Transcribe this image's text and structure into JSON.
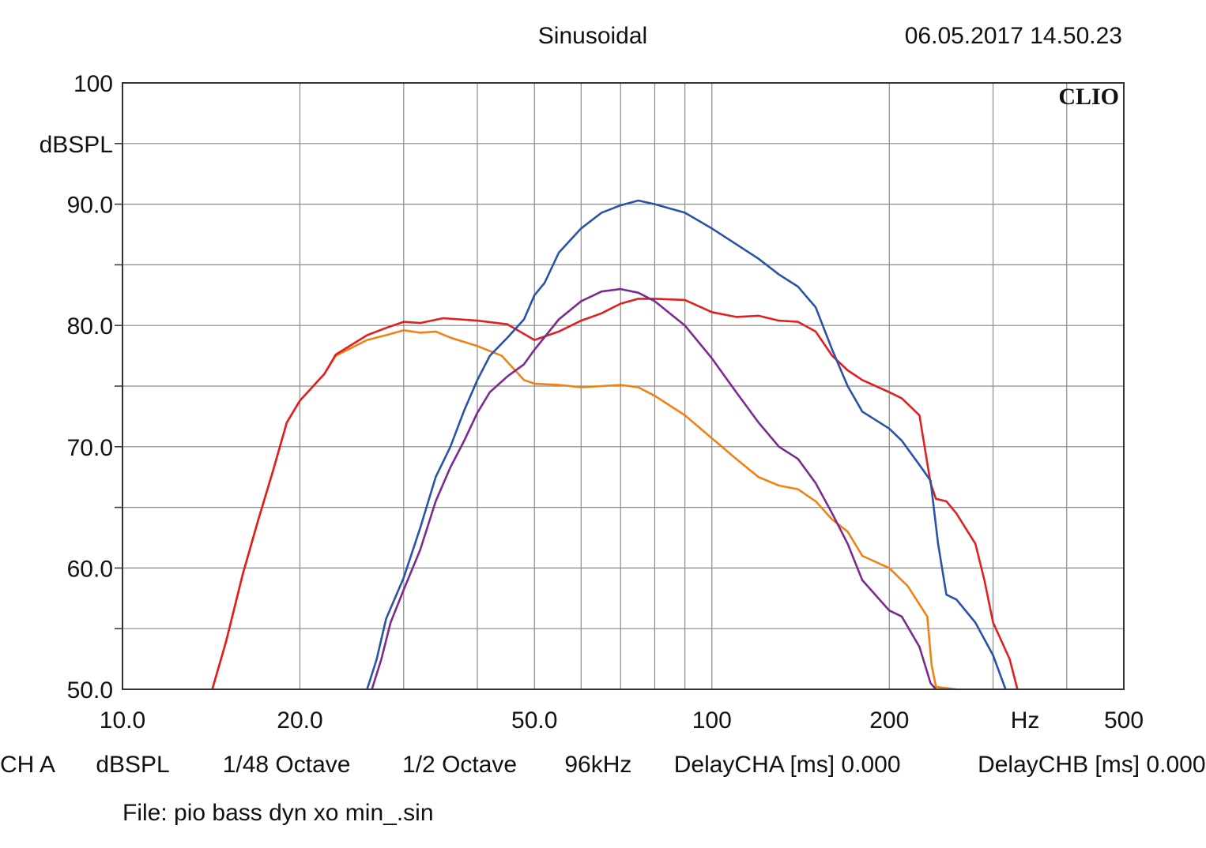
{
  "header": {
    "mode": "Sinusoidal",
    "datetime": "06.05.2017 14.50.23",
    "logo": "CLIO"
  },
  "chart_data": {
    "type": "line",
    "x_scale": "log",
    "xlim": [
      10,
      500
    ],
    "ylim": [
      50,
      100
    ],
    "grid": true,
    "x_ticks": [
      "10.0",
      "20.0",
      "50.0",
      "100",
      "200",
      "Hz",
      "500"
    ],
    "y_ticks": [
      "100",
      "dBSPL",
      "90.0",
      "80.0",
      "70.0",
      "60.0",
      "50.0"
    ],
    "series": [
      {
        "color": "#f08214",
        "points": [
          [
            14.2,
            50
          ],
          [
            15,
            54
          ],
          [
            16,
            59.5
          ],
          [
            17,
            64
          ],
          [
            18,
            68
          ],
          [
            19,
            72
          ],
          [
            20,
            73.8
          ],
          [
            22,
            76
          ],
          [
            23,
            77.5
          ],
          [
            26,
            78.8
          ],
          [
            28,
            79.2
          ],
          [
            30,
            79.6
          ],
          [
            32,
            79.4
          ],
          [
            34,
            79.5
          ],
          [
            36,
            79
          ],
          [
            40,
            78.3
          ],
          [
            44,
            77.5
          ],
          [
            48,
            75.5
          ],
          [
            50,
            75.2
          ],
          [
            55,
            75.1
          ],
          [
            60,
            74.9
          ],
          [
            65,
            75
          ],
          [
            70,
            75.1
          ],
          [
            75,
            74.9
          ],
          [
            80,
            74.2
          ],
          [
            90,
            72.6
          ],
          [
            100,
            70.7
          ],
          [
            110,
            69
          ],
          [
            120,
            67.5
          ],
          [
            130,
            66.8
          ],
          [
            140,
            66.5
          ],
          [
            150,
            65.5
          ],
          [
            160,
            64
          ],
          [
            170,
            63
          ],
          [
            180,
            61
          ],
          [
            200,
            60
          ],
          [
            215,
            58.5
          ],
          [
            232,
            56
          ],
          [
            236,
            52
          ],
          [
            240,
            50.2
          ],
          [
            260,
            50
          ]
        ]
      },
      {
        "color": "#e02020",
        "points": [
          [
            14.2,
            50
          ],
          [
            15,
            54
          ],
          [
            16,
            59.5
          ],
          [
            17,
            64
          ],
          [
            18,
            68
          ],
          [
            19,
            72
          ],
          [
            20,
            73.8
          ],
          [
            22,
            76
          ],
          [
            23,
            77.6
          ],
          [
            26,
            79.2
          ],
          [
            28,
            79.8
          ],
          [
            30,
            80.3
          ],
          [
            32,
            80.2
          ],
          [
            35,
            80.6
          ],
          [
            40,
            80.4
          ],
          [
            45,
            80.1
          ],
          [
            50,
            78.8
          ],
          [
            55,
            79.5
          ],
          [
            60,
            80.4
          ],
          [
            65,
            81
          ],
          [
            70,
            81.8
          ],
          [
            75,
            82.2
          ],
          [
            80,
            82.2
          ],
          [
            90,
            82.1
          ],
          [
            100,
            81.1
          ],
          [
            110,
            80.7
          ],
          [
            120,
            80.8
          ],
          [
            130,
            80.4
          ],
          [
            140,
            80.3
          ],
          [
            150,
            79.5
          ],
          [
            160,
            77.5
          ],
          [
            170,
            76.3
          ],
          [
            180,
            75.5
          ],
          [
            200,
            74.5
          ],
          [
            210,
            74
          ],
          [
            225,
            72.6
          ],
          [
            235,
            67
          ],
          [
            240,
            65.7
          ],
          [
            250,
            65.5
          ],
          [
            260,
            64.5
          ],
          [
            280,
            62
          ],
          [
            290,
            59
          ],
          [
            300,
            55.5
          ],
          [
            320,
            52.5
          ],
          [
            330,
            50
          ]
        ]
      },
      {
        "color": "#2a52a8",
        "points": [
          [
            26,
            50
          ],
          [
            27,
            52.5
          ],
          [
            28,
            55.8
          ],
          [
            30,
            59.2
          ],
          [
            32,
            63.3
          ],
          [
            34,
            67.5
          ],
          [
            36,
            70
          ],
          [
            38,
            73
          ],
          [
            40,
            75.5
          ],
          [
            42,
            77.5
          ],
          [
            45,
            79
          ],
          [
            48,
            80.5
          ],
          [
            50,
            82.5
          ],
          [
            52,
            83.5
          ],
          [
            55,
            86
          ],
          [
            60,
            88
          ],
          [
            65,
            89.3
          ],
          [
            70,
            89.9
          ],
          [
            75,
            90.3
          ],
          [
            80,
            90
          ],
          [
            90,
            89.3
          ],
          [
            100,
            88
          ],
          [
            110,
            86.7
          ],
          [
            120,
            85.5
          ],
          [
            130,
            84.2
          ],
          [
            140,
            83.2
          ],
          [
            150,
            81.5
          ],
          [
            160,
            78
          ],
          [
            170,
            75
          ],
          [
            180,
            72.9
          ],
          [
            200,
            71.5
          ],
          [
            210,
            70.5
          ],
          [
            225,
            68.5
          ],
          [
            235,
            67.2
          ],
          [
            242,
            62
          ],
          [
            250,
            57.8
          ],
          [
            260,
            57.4
          ],
          [
            280,
            55.5
          ],
          [
            300,
            52.8
          ],
          [
            315,
            50
          ]
        ]
      },
      {
        "color": "#7b2a8f",
        "points": [
          [
            26.5,
            50
          ],
          [
            27.5,
            52.5
          ],
          [
            28.5,
            55.5
          ],
          [
            30,
            58.2
          ],
          [
            32,
            61.5
          ],
          [
            34,
            65.5
          ],
          [
            36,
            68.3
          ],
          [
            38,
            70.5
          ],
          [
            40,
            72.8
          ],
          [
            42,
            74.5
          ],
          [
            45,
            75.8
          ],
          [
            48,
            76.8
          ],
          [
            50,
            78
          ],
          [
            55,
            80.5
          ],
          [
            60,
            82
          ],
          [
            65,
            82.8
          ],
          [
            70,
            83
          ],
          [
            75,
            82.7
          ],
          [
            80,
            82
          ],
          [
            90,
            80
          ],
          [
            100,
            77.3
          ],
          [
            110,
            74.5
          ],
          [
            120,
            72
          ],
          [
            130,
            70
          ],
          [
            140,
            69
          ],
          [
            150,
            67
          ],
          [
            160,
            64.5
          ],
          [
            170,
            62
          ],
          [
            180,
            59
          ],
          [
            200,
            56.5
          ],
          [
            210,
            56
          ],
          [
            225,
            53.5
          ],
          [
            235,
            50.5
          ],
          [
            240,
            50
          ]
        ]
      }
    ]
  },
  "footer": {
    "channel": "CH A",
    "unit": "dBSPL",
    "resolution": "1/48 Octave",
    "smoothing": "1/2 Octave",
    "sample_rate": "96kHz",
    "delay_a": "DelayCHA [ms] 0.000",
    "delay_b": "DelayCHB [ms] 0.000",
    "file": "File: pio bass dyn xo min_.sin"
  }
}
